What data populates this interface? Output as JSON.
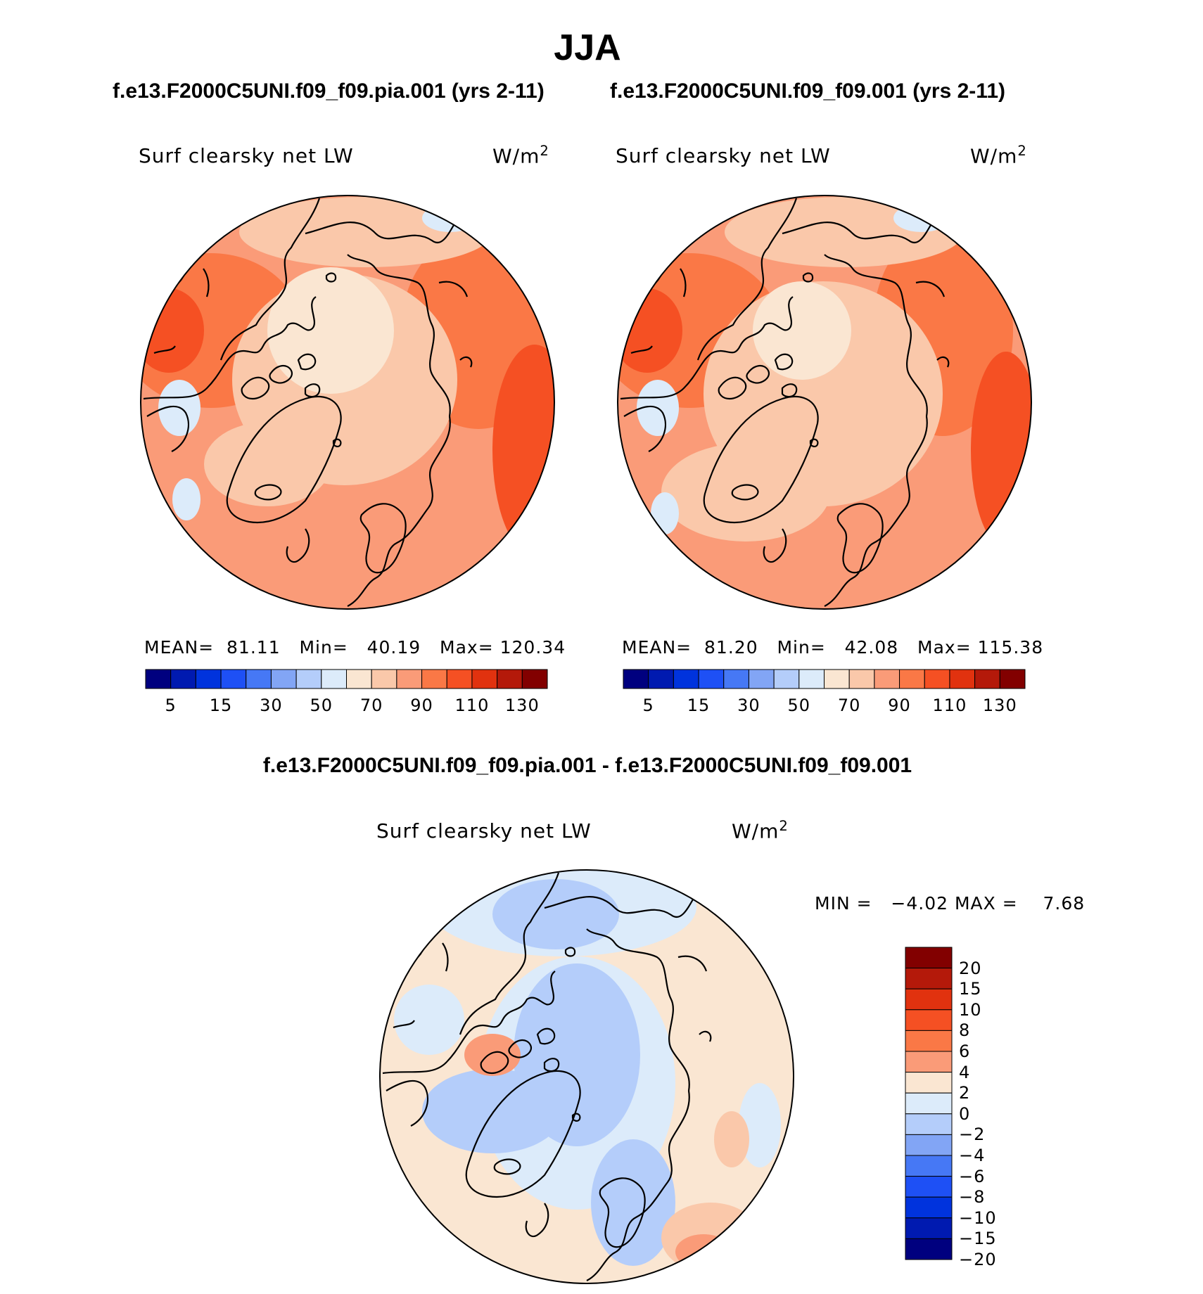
{
  "title": "JJA",
  "units": "W/m",
  "units_sup": "2",
  "variable": "Surf clearsky net LW",
  "panels": [
    {
      "case": "f.e13.F2000C5UNI.f09_f09.pia.001 (yrs 2-11)",
      "stats": {
        "mean_label": "MEAN=",
        "mean": "81.11",
        "min_label": "Min=",
        "min": "40.19",
        "max_label": "Max=",
        "max": "120.34"
      }
    },
    {
      "case": "f.e13.F2000C5UNI.f09_f09.001 (yrs 2-11)",
      "stats": {
        "mean_label": "MEAN=",
        "mean": "81.20",
        "min_label": "Min=",
        "min": "42.08",
        "max_label": "Max=",
        "max": "115.38"
      }
    }
  ],
  "diff": {
    "title": "f.e13.F2000C5UNI.f09_f09.pia.001 - f.e13.F2000C5UNI.f09_f09.001",
    "min_label": "MIN =",
    "min": "−4.02",
    "max_label": "MAX =",
    "max": "7.68"
  },
  "colorbar_main": {
    "ticks": [
      "5",
      "15",
      "30",
      "50",
      "70",
      "90",
      "110",
      "130"
    ],
    "colors": [
      "#00007f",
      "#001ab0",
      "#0033dd",
      "#1e50f5",
      "#4678f5",
      "#82a5f5",
      "#b4cdfa",
      "#dcebfa",
      "#fae6d2",
      "#fac8aa",
      "#fa9b78",
      "#fa7846",
      "#f55023",
      "#e1320f",
      "#b4190a",
      "#820000"
    ]
  },
  "colorbar_diff": {
    "ticks": [
      "20",
      "15",
      "10",
      "8",
      "6",
      "4",
      "2",
      "0",
      "−2",
      "−4",
      "−6",
      "−8",
      "−10",
      "−15",
      "−20"
    ],
    "colors": [
      "#820000",
      "#b4190a",
      "#e1320f",
      "#f55023",
      "#fa7846",
      "#fa9b78",
      "#fae6d2",
      "#dcebfa",
      "#b4cdfa",
      "#82a5f5",
      "#4678f5",
      "#1e50f5",
      "#0033dd",
      "#001ab0",
      "#00007f"
    ]
  }
}
